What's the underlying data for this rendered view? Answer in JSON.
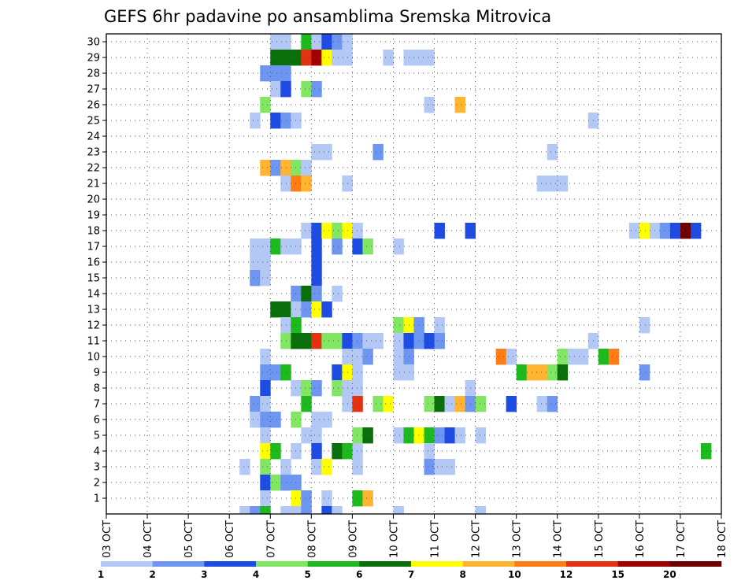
{
  "chart_data": {
    "type": "heatmap",
    "title": "GEFS 6hr padavine po ansamblima Sremska Mitrovica",
    "x_labels": [
      "03 OCT",
      "04 OCT",
      "05 OCT",
      "06 OCT",
      "07 OCT",
      "08 OCT",
      "09 OCT",
      "10 OCT",
      "11 OCT",
      "12 OCT",
      "13 OCT",
      "14 OCT",
      "15 OCT",
      "16 OCT",
      "17 OCT",
      "18 OCT"
    ],
    "y_labels": [
      "1",
      "2",
      "3",
      "4",
      "5",
      "6",
      "7",
      "8",
      "9",
      "10",
      "11",
      "12",
      "13",
      "14",
      "15",
      "16",
      "17",
      "18",
      "19",
      "20",
      "21",
      "22",
      "23",
      "24",
      "25",
      "26",
      "27",
      "28",
      "29",
      "30"
    ],
    "time_steps_per_day": 4,
    "grid": true,
    "legend_position": "bottom",
    "colorbar": {
      "labels": [
        "1",
        "2",
        "3",
        "4",
        "5",
        "6",
        "7",
        "8",
        "10",
        "12",
        "15",
        "20"
      ],
      "colors": [
        "#b4c8f5",
        "#6e96f0",
        "#1e4be1",
        "#82e664",
        "#1eb91e",
        "#0a6e0a",
        "#ffff00",
        "#ffb432",
        "#ff7d14",
        "#e13214",
        "#a00000",
        "#6e0000"
      ]
    },
    "cells": [
      [
        30,
        "07 OCT",
        0,
        1
      ],
      [
        30,
        "07 OCT",
        1,
        1
      ],
      [
        30,
        "07 OCT",
        3,
        5
      ],
      [
        30,
        "08 OCT",
        0,
        1
      ],
      [
        30,
        "08 OCT",
        1,
        3
      ],
      [
        30,
        "08 OCT",
        2,
        2
      ],
      [
        30,
        "08 OCT",
        3,
        1
      ],
      [
        29,
        "07 OCT",
        0,
        6
      ],
      [
        29,
        "07 OCT",
        1,
        6
      ],
      [
        29,
        "07 OCT",
        2,
        6
      ],
      [
        29,
        "07 OCT",
        3,
        10
      ],
      [
        29,
        "08 OCT",
        0,
        11
      ],
      [
        29,
        "08 OCT",
        1,
        7
      ],
      [
        29,
        "08 OCT",
        2,
        1
      ],
      [
        29,
        "08 OCT",
        3,
        1
      ],
      [
        29,
        "09 OCT",
        3,
        1
      ],
      [
        29,
        "10 OCT",
        1,
        1
      ],
      [
        29,
        "10 OCT",
        2,
        1
      ],
      [
        29,
        "10 OCT",
        3,
        1
      ],
      [
        28,
        "06 OCT",
        3,
        2
      ],
      [
        28,
        "07 OCT",
        0,
        2
      ],
      [
        28,
        "07 OCT",
        1,
        2
      ],
      [
        27,
        "07 OCT",
        0,
        1
      ],
      [
        27,
        "07 OCT",
        1,
        3
      ],
      [
        27,
        "07 OCT",
        3,
        4
      ],
      [
        27,
        "08 OCT",
        0,
        2
      ],
      [
        26,
        "06 OCT",
        3,
        4
      ],
      [
        26,
        "10 OCT",
        3,
        1
      ],
      [
        26,
        "11 OCT",
        2,
        8
      ],
      [
        25,
        "06 OCT",
        2,
        1
      ],
      [
        25,
        "07 OCT",
        0,
        3
      ],
      [
        25,
        "07 OCT",
        1,
        2
      ],
      [
        25,
        "07 OCT",
        2,
        1
      ],
      [
        25,
        "14 OCT",
        3,
        1
      ],
      [
        23,
        "08 OCT",
        0,
        1
      ],
      [
        23,
        "08 OCT",
        1,
        1
      ],
      [
        23,
        "09 OCT",
        2,
        2
      ],
      [
        23,
        "13 OCT",
        3,
        1
      ],
      [
        22,
        "06 OCT",
        3,
        8
      ],
      [
        22,
        "07 OCT",
        0,
        2
      ],
      [
        22,
        "07 OCT",
        1,
        8
      ],
      [
        22,
        "07 OCT",
        2,
        4
      ],
      [
        22,
        "07 OCT",
        3,
        1
      ],
      [
        21,
        "07 OCT",
        1,
        1
      ],
      [
        21,
        "07 OCT",
        2,
        9
      ],
      [
        21,
        "07 OCT",
        3,
        8
      ],
      [
        21,
        "08 OCT",
        3,
        1
      ],
      [
        21,
        "13 OCT",
        2,
        1
      ],
      [
        21,
        "13 OCT",
        3,
        1
      ],
      [
        21,
        "14 OCT",
        0,
        1
      ],
      [
        18,
        "07 OCT",
        3,
        1
      ],
      [
        18,
        "08 OCT",
        0,
        3
      ],
      [
        18,
        "08 OCT",
        1,
        7
      ],
      [
        18,
        "08 OCT",
        2,
        4
      ],
      [
        18,
        "08 OCT",
        3,
        7
      ],
      [
        18,
        "09 OCT",
        0,
        1
      ],
      [
        18,
        "11 OCT",
        0,
        3
      ],
      [
        18,
        "11 OCT",
        3,
        3
      ],
      [
        18,
        "15 OCT",
        3,
        1
      ],
      [
        18,
        "16 OCT",
        0,
        7
      ],
      [
        18,
        "16 OCT",
        1,
        1
      ],
      [
        18,
        "16 OCT",
        2,
        2
      ],
      [
        18,
        "16 OCT",
        3,
        3
      ],
      [
        18,
        "17 OCT",
        0,
        12
      ],
      [
        18,
        "17 OCT",
        1,
        3
      ],
      [
        17,
        "06 OCT",
        2,
        1
      ],
      [
        17,
        "06 OCT",
        3,
        1
      ],
      [
        17,
        "07 OCT",
        0,
        5
      ],
      [
        17,
        "07 OCT",
        1,
        1
      ],
      [
        17,
        "07 OCT",
        2,
        1
      ],
      [
        17,
        "08 OCT",
        0,
        3
      ],
      [
        17,
        "08 OCT",
        2,
        2
      ],
      [
        17,
        "09 OCT",
        0,
        3
      ],
      [
        17,
        "09 OCT",
        1,
        4
      ],
      [
        17,
        "10 OCT",
        0,
        1
      ],
      [
        16,
        "06 OCT",
        2,
        1
      ],
      [
        16,
        "06 OCT",
        3,
        1
      ],
      [
        16,
        "08 OCT",
        0,
        3
      ],
      [
        15,
        "06 OCT",
        2,
        2
      ],
      [
        15,
        "06 OCT",
        3,
        1
      ],
      [
        15,
        "08 OCT",
        0,
        3
      ],
      [
        14,
        "07 OCT",
        2,
        2
      ],
      [
        14,
        "07 OCT",
        3,
        6
      ],
      [
        14,
        "08 OCT",
        0,
        2
      ],
      [
        14,
        "08 OCT",
        2,
        1
      ],
      [
        13,
        "07 OCT",
        0,
        6
      ],
      [
        13,
        "07 OCT",
        1,
        6
      ],
      [
        13,
        "07 OCT",
        2,
        1
      ],
      [
        13,
        "07 OCT",
        3,
        2
      ],
      [
        13,
        "08 OCT",
        0,
        7
      ],
      [
        13,
        "08 OCT",
        1,
        3
      ],
      [
        12,
        "07 OCT",
        1,
        1
      ],
      [
        12,
        "07 OCT",
        2,
        5
      ],
      [
        12,
        "10 OCT",
        0,
        4
      ],
      [
        12,
        "10 OCT",
        1,
        7
      ],
      [
        12,
        "10 OCT",
        2,
        2
      ],
      [
        12,
        "11 OCT",
        0,
        1
      ],
      [
        12,
        "16 OCT",
        0,
        1
      ],
      [
        11,
        "07 OCT",
        1,
        4
      ],
      [
        11,
        "07 OCT",
        2,
        6
      ],
      [
        11,
        "07 OCT",
        3,
        6
      ],
      [
        11,
        "08 OCT",
        0,
        10
      ],
      [
        11,
        "08 OCT",
        1,
        4
      ],
      [
        11,
        "08 OCT",
        2,
        4
      ],
      [
        11,
        "08 OCT",
        3,
        3
      ],
      [
        11,
        "09 OCT",
        0,
        2
      ],
      [
        11,
        "09 OCT",
        1,
        1
      ],
      [
        11,
        "09 OCT",
        2,
        1
      ],
      [
        11,
        "10 OCT",
        0,
        1
      ],
      [
        11,
        "10 OCT",
        1,
        3
      ],
      [
        11,
        "10 OCT",
        2,
        2
      ],
      [
        11,
        "10 OCT",
        3,
        3
      ],
      [
        11,
        "11 OCT",
        0,
        2
      ],
      [
        11,
        "14 OCT",
        3,
        1
      ],
      [
        10,
        "06 OCT",
        3,
        1
      ],
      [
        10,
        "08 OCT",
        3,
        1
      ],
      [
        10,
        "09 OCT",
        0,
        1
      ],
      [
        10,
        "09 OCT",
        1,
        2
      ],
      [
        10,
        "10 OCT",
        0,
        1
      ],
      [
        10,
        "10 OCT",
        1,
        2
      ],
      [
        10,
        "12 OCT",
        2,
        9
      ],
      [
        10,
        "12 OCT",
        3,
        1
      ],
      [
        10,
        "14 OCT",
        0,
        4
      ],
      [
        10,
        "14 OCT",
        1,
        1
      ],
      [
        10,
        "14 OCT",
        2,
        1
      ],
      [
        10,
        "15 OCT",
        0,
        5
      ],
      [
        10,
        "15 OCT",
        1,
        9
      ],
      [
        9,
        "06 OCT",
        3,
        2
      ],
      [
        9,
        "07 OCT",
        0,
        2
      ],
      [
        9,
        "07 OCT",
        1,
        5
      ],
      [
        9,
        "08 OCT",
        2,
        3
      ],
      [
        9,
        "08 OCT",
        3,
        7
      ],
      [
        9,
        "09 OCT",
        0,
        1
      ],
      [
        9,
        "10 OCT",
        0,
        1
      ],
      [
        9,
        "10 OCT",
        1,
        1
      ],
      [
        9,
        "13 OCT",
        0,
        5
      ],
      [
        9,
        "13 OCT",
        1,
        8
      ],
      [
        9,
        "13 OCT",
        2,
        8
      ],
      [
        9,
        "13 OCT",
        3,
        4
      ],
      [
        9,
        "14 OCT",
        0,
        6
      ],
      [
        9,
        "16 OCT",
        0,
        2
      ],
      [
        8,
        "06 OCT",
        3,
        3
      ],
      [
        8,
        "07 OCT",
        2,
        1
      ],
      [
        8,
        "07 OCT",
        3,
        4
      ],
      [
        8,
        "08 OCT",
        0,
        2
      ],
      [
        8,
        "08 OCT",
        2,
        4
      ],
      [
        8,
        "08 OCT",
        3,
        1
      ],
      [
        8,
        "09 OCT",
        0,
        1
      ],
      [
        8,
        "11 OCT",
        3,
        1
      ],
      [
        7,
        "06 OCT",
        2,
        2
      ],
      [
        7,
        "06 OCT",
        3,
        1
      ],
      [
        7,
        "07 OCT",
        3,
        5
      ],
      [
        7,
        "08 OCT",
        3,
        1
      ],
      [
        7,
        "09 OCT",
        0,
        10
      ],
      [
        7,
        "09 OCT",
        2,
        4
      ],
      [
        7,
        "09 OCT",
        3,
        7
      ],
      [
        7,
        "10 OCT",
        3,
        4
      ],
      [
        7,
        "11 OCT",
        0,
        6
      ],
      [
        7,
        "11 OCT",
        1,
        1
      ],
      [
        7,
        "11 OCT",
        2,
        8
      ],
      [
        7,
        "11 OCT",
        3,
        2
      ],
      [
        7,
        "12 OCT",
        0,
        4
      ],
      [
        7,
        "12 OCT",
        3,
        3
      ],
      [
        7,
        "13 OCT",
        2,
        1
      ],
      [
        7,
        "13 OCT",
        3,
        2
      ],
      [
        6,
        "06 OCT",
        2,
        1
      ],
      [
        6,
        "06 OCT",
        3,
        2
      ],
      [
        6,
        "07 OCT",
        0,
        2
      ],
      [
        6,
        "07 OCT",
        2,
        4
      ],
      [
        6,
        "08 OCT",
        0,
        1
      ],
      [
        6,
        "08 OCT",
        1,
        1
      ],
      [
        5,
        "06 OCT",
        3,
        1
      ],
      [
        5,
        "07 OCT",
        3,
        1
      ],
      [
        5,
        "08 OCT",
        0,
        1
      ],
      [
        5,
        "09 OCT",
        0,
        4
      ],
      [
        5,
        "09 OCT",
        1,
        6
      ],
      [
        5,
        "10 OCT",
        0,
        1
      ],
      [
        5,
        "10 OCT",
        1,
        5
      ],
      [
        5,
        "10 OCT",
        2,
        7
      ],
      [
        5,
        "10 OCT",
        3,
        5
      ],
      [
        5,
        "11 OCT",
        0,
        2
      ],
      [
        5,
        "11 OCT",
        1,
        3
      ],
      [
        5,
        "11 OCT",
        2,
        1
      ],
      [
        5,
        "12 OCT",
        0,
        1
      ],
      [
        4,
        "06 OCT",
        3,
        7
      ],
      [
        4,
        "07 OCT",
        0,
        5
      ],
      [
        4,
        "07 OCT",
        2,
        1
      ],
      [
        4,
        "08 OCT",
        0,
        3
      ],
      [
        4,
        "08 OCT",
        2,
        6
      ],
      [
        4,
        "08 OCT",
        3,
        5
      ],
      [
        4,
        "09 OCT",
        0,
        1
      ],
      [
        4,
        "10 OCT",
        3,
        1
      ],
      [
        4,
        "17 OCT",
        2,
        5
      ],
      [
        3,
        "06 OCT",
        1,
        1
      ],
      [
        3,
        "06 OCT",
        3,
        4
      ],
      [
        3,
        "07 OCT",
        1,
        1
      ],
      [
        3,
        "08 OCT",
        0,
        1
      ],
      [
        3,
        "08 OCT",
        1,
        7
      ],
      [
        3,
        "09 OCT",
        0,
        1
      ],
      [
        3,
        "10 OCT",
        3,
        2
      ],
      [
        3,
        "11 OCT",
        0,
        1
      ],
      [
        3,
        "11 OCT",
        1,
        1
      ],
      [
        2,
        "06 OCT",
        3,
        3
      ],
      [
        2,
        "07 OCT",
        0,
        4
      ],
      [
        2,
        "07 OCT",
        1,
        2
      ],
      [
        2,
        "07 OCT",
        2,
        2
      ],
      [
        1,
        "06 OCT",
        3,
        1
      ],
      [
        1,
        "07 OCT",
        2,
        7
      ],
      [
        1,
        "07 OCT",
        3,
        2
      ],
      [
        1,
        "08 OCT",
        1,
        1
      ],
      [
        1,
        "09 OCT",
        0,
        5
      ],
      [
        1,
        "09 OCT",
        1,
        8
      ],
      [
        0,
        "06 OCT",
        1,
        1
      ],
      [
        0,
        "06 OCT",
        2,
        2
      ],
      [
        0,
        "06 OCT",
        3,
        5
      ],
      [
        0,
        "07 OCT",
        1,
        1
      ],
      [
        0,
        "07 OCT",
        2,
        1
      ],
      [
        0,
        "07 OCT",
        3,
        2
      ],
      [
        0,
        "08 OCT",
        1,
        3
      ],
      [
        0,
        "08 OCT",
        2,
        1
      ],
      [
        0,
        "10 OCT",
        0,
        1
      ],
      [
        0,
        "12 OCT",
        0,
        1
      ]
    ]
  }
}
